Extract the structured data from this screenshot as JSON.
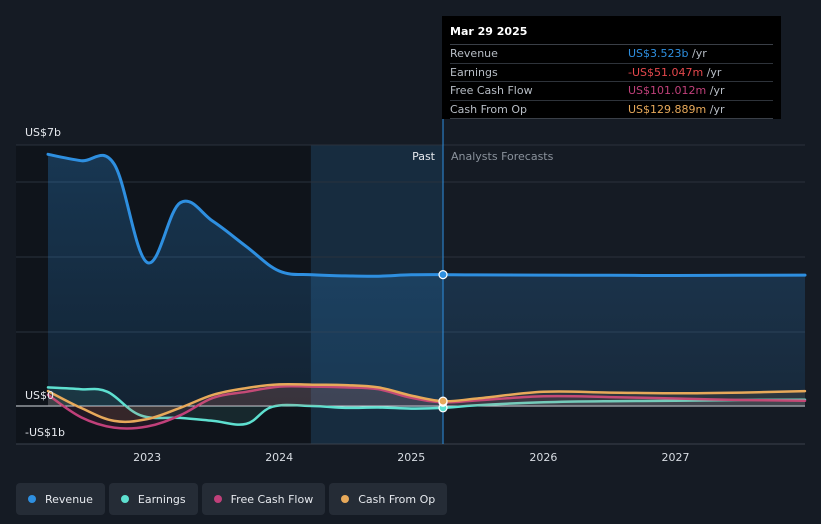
{
  "colors": {
    "background": "#151b24",
    "revenue": "#2e8fe0",
    "earnings": "#5ee0d0",
    "free_cash_flow": "#c0407a",
    "cash_from_op": "#e7a95a",
    "expense_red": "#e5484d"
  },
  "tooltip": {
    "date": "Mar 29 2025",
    "rows": [
      {
        "name": "Revenue",
        "value": "US$3.523b",
        "unit": "/yr",
        "color": "#2e8fe0"
      },
      {
        "name": "Earnings",
        "value": "-US$51.047m",
        "unit": "/yr",
        "color": "#e5484d"
      },
      {
        "name": "Free Cash Flow",
        "value": "US$101.012m",
        "unit": "/yr",
        "color": "#c0407a"
      },
      {
        "name": "Cash From Op",
        "value": "US$129.889m",
        "unit": "/yr",
        "color": "#e7a95a"
      }
    ]
  },
  "legend": [
    {
      "label": "Revenue",
      "color": "#2e8fe0"
    },
    {
      "label": "Earnings",
      "color": "#5ee0d0"
    },
    {
      "label": "Free Cash Flow",
      "color": "#c0407a"
    },
    {
      "label": "Cash From Op",
      "color": "#e7a95a"
    }
  ],
  "chart_data": {
    "type": "line",
    "title": "",
    "xlabel": "",
    "ylabel": "",
    "y_tick_labels": [
      {
        "value": 7,
        "label": "US$7b"
      },
      {
        "value": 0,
        "label": "US$0"
      },
      {
        "value": -1,
        "label": "-US$1b"
      }
    ],
    "x_tick_labels": [
      "2023",
      "2024",
      "2025",
      "2026",
      "2027"
    ],
    "x_ticks": [
      2023,
      2024,
      2025,
      2026,
      2027
    ],
    "xlim": [
      2022.25,
      2027.98
    ],
    "ylim": [
      -1.0,
      7.0
    ],
    "regions": {
      "past_label": "Past",
      "forecast_label": "Analysts Forecasts",
      "highlight_start": 2024.24,
      "divider": 2025.24
    },
    "series": [
      {
        "name": "Revenue",
        "key": "revenue",
        "x": [
          2022.25,
          2022.5,
          2022.75,
          2023.0,
          2023.25,
          2023.5,
          2023.75,
          2024.0,
          2024.25,
          2024.5,
          2024.75,
          2025.0,
          2025.24,
          2025.5,
          2026.0,
          2026.5,
          2027.0,
          2027.5,
          2027.98
        ],
        "values": [
          6.75,
          6.58,
          6.49,
          3.85,
          5.45,
          4.95,
          4.28,
          3.62,
          3.52,
          3.49,
          3.48,
          3.52,
          3.523,
          3.515,
          3.51,
          3.505,
          3.5,
          3.505,
          3.51
        ]
      },
      {
        "name": "Earnings",
        "key": "earnings",
        "x": [
          2022.25,
          2022.5,
          2022.7,
          2022.95,
          2023.25,
          2023.5,
          2023.75,
          2023.95,
          2024.25,
          2024.5,
          2024.75,
          2025.0,
          2025.24,
          2025.5,
          2026.0,
          2026.5,
          2027.0,
          2027.5,
          2027.98
        ],
        "values": [
          0.5,
          0.45,
          0.38,
          -0.25,
          -0.32,
          -0.4,
          -0.48,
          -0.02,
          0.0,
          -0.05,
          -0.04,
          -0.07,
          -0.051,
          0.02,
          0.1,
          0.13,
          0.14,
          0.16,
          0.17
        ]
      },
      {
        "name": "Free Cash Flow",
        "key": "free_cash_flow",
        "x": [
          2022.25,
          2022.5,
          2022.75,
          2023.0,
          2023.25,
          2023.5,
          2023.75,
          2024.0,
          2024.25,
          2024.5,
          2024.75,
          2025.0,
          2025.24,
          2025.5,
          2026.0,
          2026.5,
          2027.0,
          2027.5,
          2027.98
        ],
        "values": [
          0.3,
          -0.3,
          -0.58,
          -0.55,
          -0.25,
          0.22,
          0.38,
          0.52,
          0.52,
          0.5,
          0.45,
          0.22,
          0.101,
          0.15,
          0.26,
          0.24,
          0.2,
          0.16,
          0.14
        ]
      },
      {
        "name": "Cash From Op",
        "key": "cash_from_op",
        "x": [
          2022.25,
          2022.5,
          2022.75,
          2023.0,
          2023.25,
          2023.5,
          2023.75,
          2024.0,
          2024.25,
          2024.5,
          2024.75,
          2025.0,
          2025.24,
          2025.5,
          2026.0,
          2026.5,
          2027.0,
          2027.5,
          2027.98
        ],
        "values": [
          0.4,
          -0.05,
          -0.4,
          -0.35,
          -0.05,
          0.3,
          0.48,
          0.58,
          0.57,
          0.56,
          0.5,
          0.28,
          0.13,
          0.2,
          0.38,
          0.36,
          0.34,
          0.36,
          0.4
        ]
      }
    ],
    "highlight_points_x": 2025.24,
    "grid": true,
    "legend_position": "bottom-left"
  }
}
